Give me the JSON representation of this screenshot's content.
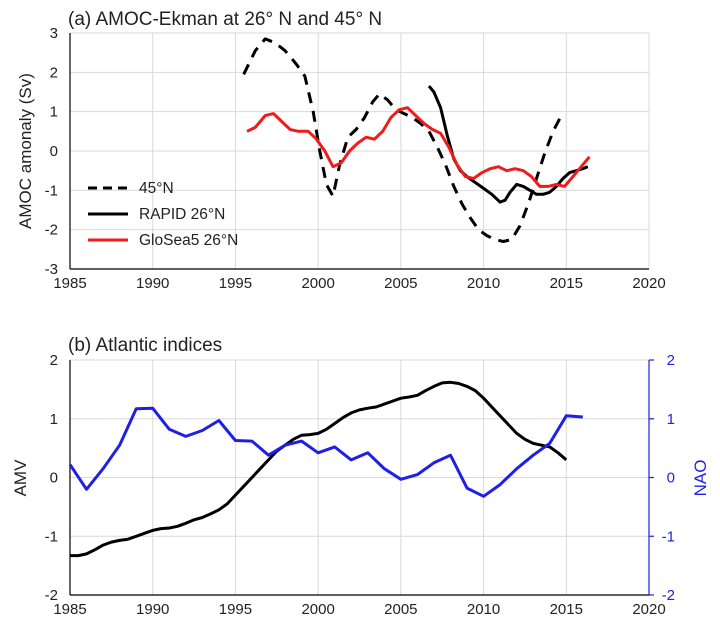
{
  "chart_data": [
    {
      "type": "line",
      "title": "(a) AMOC-Ekman at 26° N and 45° N",
      "xlabel": "",
      "ylabel": "AMOC amonaly (Sv)",
      "xlim": [
        1985,
        2020
      ],
      "ylim": [
        -3,
        3
      ],
      "xticks": [
        "1985",
        "1990",
        "1995",
        "2000",
        "2005",
        "2010",
        "2015",
        "2020"
      ],
      "yticks": [
        "-3",
        "-2",
        "-1",
        "0",
        "1",
        "2",
        "3"
      ],
      "grid": true,
      "legend_position": "lower-left",
      "series": [
        {
          "name": "45°N",
          "color": "#000000",
          "dash": "dashed",
          "x": [
            1995.5,
            1996.2,
            1996.8,
            1997.4,
            1998.0,
            1998.7,
            1999.2,
            1999.7,
            2000.1,
            2000.5,
            2000.9,
            2001.3,
            2001.8,
            2002.3,
            2002.8,
            2003.3,
            2003.7,
            2004.2,
            2004.7,
            2005.2,
            2005.7,
            2006.2,
            2006.7,
            2007.2,
            2007.7,
            2008.2,
            2008.7,
            2009.2,
            2009.7,
            2010.2,
            2010.7,
            2011.2,
            2011.7,
            2012.2,
            2012.7,
            2013.2,
            2013.7,
            2014.2,
            2014.7
          ],
          "values": [
            1.95,
            2.55,
            2.85,
            2.75,
            2.55,
            2.2,
            1.9,
            1.0,
            0.0,
            -0.85,
            -1.15,
            -0.35,
            0.35,
            0.55,
            0.85,
            1.25,
            1.45,
            1.3,
            1.05,
            0.95,
            0.85,
            0.7,
            0.5,
            0.1,
            -0.35,
            -0.9,
            -1.35,
            -1.7,
            -2.0,
            -2.15,
            -2.25,
            -2.3,
            -2.25,
            -1.9,
            -1.35,
            -0.7,
            -0.05,
            0.5,
            0.9
          ]
        },
        {
          "name": "RAPID 26°N",
          "color": "#000000",
          "dash": "solid",
          "x": [
            2006.7,
            2007.0,
            2007.4,
            2007.8,
            2008.2,
            2008.6,
            2009.0,
            2009.5,
            2010.0,
            2010.5,
            2011.0,
            2011.3,
            2011.6,
            2012.0,
            2012.4,
            2012.8,
            2013.2,
            2013.6,
            2014.0,
            2014.4,
            2014.8,
            2015.2,
            2015.6,
            2016.0,
            2016.3
          ],
          "values": [
            1.65,
            1.5,
            1.1,
            0.4,
            -0.2,
            -0.5,
            -0.65,
            -0.8,
            -0.95,
            -1.1,
            -1.3,
            -1.25,
            -1.05,
            -0.85,
            -0.9,
            -1.0,
            -1.1,
            -1.1,
            -1.05,
            -0.9,
            -0.7,
            -0.55,
            -0.5,
            -0.45,
            -0.4
          ]
        },
        {
          "name": "GloSea5 26°N",
          "color": "#ee1c1c",
          "dash": "solid",
          "x": [
            1995.7,
            1996.2,
            1996.8,
            1997.3,
            1997.8,
            1998.3,
            1998.8,
            1999.4,
            1999.9,
            2000.4,
            2000.9,
            2001.4,
            2001.9,
            2002.4,
            2002.9,
            2003.4,
            2003.9,
            2004.4,
            2004.9,
            2005.4,
            2005.9,
            2006.4,
            2006.9,
            2007.4,
            2007.9,
            2008.4,
            2008.9,
            2009.4,
            2009.9,
            2010.4,
            2010.9,
            2011.4,
            2011.9,
            2012.4,
            2012.9,
            2013.4,
            2013.9,
            2014.4,
            2014.9,
            2015.4,
            2015.9,
            2016.4
          ],
          "values": [
            0.5,
            0.6,
            0.9,
            0.95,
            0.75,
            0.55,
            0.5,
            0.5,
            0.3,
            0.0,
            -0.4,
            -0.3,
            0.0,
            0.2,
            0.35,
            0.3,
            0.5,
            0.85,
            1.05,
            1.1,
            0.9,
            0.7,
            0.55,
            0.45,
            0.1,
            -0.35,
            -0.65,
            -0.7,
            -0.55,
            -0.45,
            -0.4,
            -0.5,
            -0.45,
            -0.5,
            -0.65,
            -0.9,
            -0.9,
            -0.85,
            -0.9,
            -0.65,
            -0.4,
            -0.15
          ]
        }
      ]
    },
    {
      "type": "line",
      "title": "(b) Atlantic indices",
      "xlabel": "",
      "ylabel": "AMV",
      "y2label": "NAO",
      "xlim": [
        1985,
        2020
      ],
      "ylim": [
        -2,
        2
      ],
      "y2lim": [
        -2,
        2
      ],
      "xticks": [
        "1985",
        "1990",
        "1995",
        "2000",
        "2005",
        "2010",
        "2015",
        "2020"
      ],
      "yticks": [
        "-2",
        "-1",
        "0",
        "1",
        "2"
      ],
      "y2ticks": [
        "-2",
        "-1",
        "0",
        "1",
        "2"
      ],
      "grid": true,
      "series": [
        {
          "name": "AMV",
          "axis": "left",
          "color": "#000000",
          "x": [
            1985,
            1985.5,
            1986,
            1986.5,
            1987,
            1987.5,
            1988,
            1988.5,
            1989,
            1989.5,
            1990,
            1990.5,
            1991,
            1991.5,
            1992,
            1992.5,
            1993,
            1993.5,
            1994,
            1994.5,
            1995,
            1995.5,
            1996,
            1996.5,
            1997,
            1997.5,
            1998,
            1998.5,
            1999,
            1999.5,
            2000,
            2000.5,
            2001,
            2001.5,
            2002,
            2002.5,
            2003,
            2003.5,
            2004,
            2004.5,
            2005,
            2005.5,
            2006,
            2006.5,
            2007,
            2007.5,
            2008,
            2008.5,
            2009,
            2009.5,
            2010,
            2010.5,
            2011,
            2011.5,
            2012,
            2012.5,
            2013,
            2013.5,
            2014,
            2014.5,
            2015
          ],
          "values": [
            -1.33,
            -1.33,
            -1.3,
            -1.23,
            -1.15,
            -1.1,
            -1.07,
            -1.05,
            -1.0,
            -0.95,
            -0.9,
            -0.87,
            -0.86,
            -0.83,
            -0.78,
            -0.72,
            -0.68,
            -0.62,
            -0.55,
            -0.45,
            -0.3,
            -0.15,
            0.0,
            0.15,
            0.3,
            0.45,
            0.55,
            0.65,
            0.72,
            0.73,
            0.75,
            0.82,
            0.92,
            1.02,
            1.1,
            1.15,
            1.18,
            1.2,
            1.25,
            1.3,
            1.35,
            1.37,
            1.4,
            1.48,
            1.55,
            1.61,
            1.62,
            1.6,
            1.55,
            1.48,
            1.35,
            1.2,
            1.05,
            0.9,
            0.75,
            0.65,
            0.58,
            0.55,
            0.52,
            0.42,
            0.3
          ]
        },
        {
          "name": "NAO",
          "axis": "right",
          "color": "#1f1fe6",
          "x": [
            1985,
            1986,
            1987,
            1988,
            1989,
            1990,
            1991,
            1992,
            1993,
            1994,
            1995,
            1996,
            1997,
            1998,
            1999,
            2000,
            2001,
            2002,
            2003,
            2004,
            2005,
            2006,
            2007,
            2008,
            2009,
            2010,
            2011,
            2012,
            2013,
            2014,
            2015,
            2016
          ],
          "values": [
            0.22,
            -0.2,
            0.15,
            0.55,
            1.17,
            1.18,
            0.82,
            0.7,
            0.8,
            0.97,
            0.63,
            0.62,
            0.38,
            0.55,
            0.62,
            0.42,
            0.52,
            0.3,
            0.42,
            0.15,
            -0.03,
            0.05,
            0.25,
            0.38,
            -0.18,
            -0.32,
            -0.12,
            0.15,
            0.38,
            0.58,
            1.05,
            1.03
          ]
        }
      ]
    }
  ]
}
